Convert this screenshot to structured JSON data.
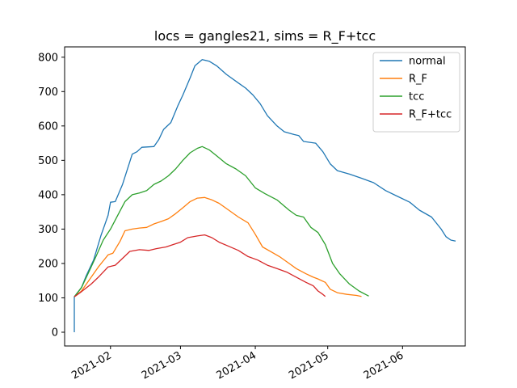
{
  "chart_data": {
    "type": "line",
    "title": "locs = gangles21, sims = R_F+tcc",
    "xlabel": "",
    "ylabel": "",
    "x_ticks": [
      "2021-01-31",
      "2021-03-01",
      "2021-04-01",
      "2021-05-01",
      "2021-06-01"
    ],
    "x_tick_labels": [
      "2021-02",
      "2021-03",
      "2021-04",
      "2021-05",
      "2021-06"
    ],
    "xlim": [
      "2021-01-12",
      "2021-06-27"
    ],
    "y_ticks": [
      0,
      100,
      200,
      300,
      400,
      500,
      600,
      700,
      800
    ],
    "y_tick_labels": [
      "0",
      "100",
      "200",
      "300",
      "400",
      "500",
      "600",
      "700",
      "800"
    ],
    "ylim": [
      -40,
      830
    ],
    "grid": false,
    "legend_position": "top-right",
    "series": [
      {
        "name": "normal",
        "color": "#1f77b4",
        "points": [
          [
            "2021-01-16",
            0
          ],
          [
            "2021-01-16",
            103
          ],
          [
            "2021-01-19",
            130
          ],
          [
            "2021-01-21",
            165
          ],
          [
            "2021-01-24",
            210
          ],
          [
            "2021-01-27",
            280
          ],
          [
            "2021-01-30",
            340
          ],
          [
            "2021-01-31",
            378
          ],
          [
            "2021-02-02",
            380
          ],
          [
            "2021-02-05",
            430
          ],
          [
            "2021-02-09",
            518
          ],
          [
            "2021-02-11",
            525
          ],
          [
            "2021-02-13",
            538
          ],
          [
            "2021-02-18",
            540
          ],
          [
            "2021-02-20",
            560
          ],
          [
            "2021-02-22",
            590
          ],
          [
            "2021-02-25",
            610
          ],
          [
            "2021-02-28",
            660
          ],
          [
            "2021-03-02",
            690
          ],
          [
            "2021-03-05",
            740
          ],
          [
            "2021-03-07",
            775
          ],
          [
            "2021-03-10",
            793
          ],
          [
            "2021-03-13",
            788
          ],
          [
            "2021-03-16",
            775
          ],
          [
            "2021-03-20",
            750
          ],
          [
            "2021-03-25",
            725
          ],
          [
            "2021-03-28",
            710
          ],
          [
            "2021-03-31",
            690
          ],
          [
            "2021-04-03",
            665
          ],
          [
            "2021-04-06",
            630
          ],
          [
            "2021-04-10",
            600
          ],
          [
            "2021-04-13",
            583
          ],
          [
            "2021-04-17",
            575
          ],
          [
            "2021-04-19",
            572
          ],
          [
            "2021-04-21",
            555
          ],
          [
            "2021-04-26",
            550
          ],
          [
            "2021-04-29",
            525
          ],
          [
            "2021-05-02",
            490
          ],
          [
            "2021-05-05",
            470
          ],
          [
            "2021-05-10",
            460
          ],
          [
            "2021-05-15",
            448
          ],
          [
            "2021-05-20",
            435
          ],
          [
            "2021-05-25",
            412
          ],
          [
            "2021-05-30",
            395
          ],
          [
            "2021-06-04",
            378
          ],
          [
            "2021-06-08",
            355
          ],
          [
            "2021-06-13",
            335
          ],
          [
            "2021-06-17",
            300
          ],
          [
            "2021-06-19",
            278
          ],
          [
            "2021-06-21",
            268
          ],
          [
            "2021-06-23",
            265
          ]
        ]
      },
      {
        "name": "R_F",
        "color": "#ff7f0e",
        "points": [
          [
            "2021-01-16",
            103
          ],
          [
            "2021-01-19",
            120
          ],
          [
            "2021-01-23",
            160
          ],
          [
            "2021-01-26",
            190
          ],
          [
            "2021-01-30",
            225
          ],
          [
            "2021-02-01",
            230
          ],
          [
            "2021-02-04",
            265
          ],
          [
            "2021-02-06",
            295
          ],
          [
            "2021-02-09",
            300
          ],
          [
            "2021-02-12",
            303
          ],
          [
            "2021-02-15",
            305
          ],
          [
            "2021-02-18",
            315
          ],
          [
            "2021-02-21",
            322
          ],
          [
            "2021-02-24",
            330
          ],
          [
            "2021-02-27",
            345
          ],
          [
            "2021-03-02",
            362
          ],
          [
            "2021-03-05",
            380
          ],
          [
            "2021-03-08",
            390
          ],
          [
            "2021-03-11",
            392
          ],
          [
            "2021-03-14",
            385
          ],
          [
            "2021-03-17",
            375
          ],
          [
            "2021-03-21",
            355
          ],
          [
            "2021-03-25",
            335
          ],
          [
            "2021-03-29",
            318
          ],
          [
            "2021-04-01",
            285
          ],
          [
            "2021-04-04",
            248
          ],
          [
            "2021-04-08",
            232
          ],
          [
            "2021-04-11",
            220
          ],
          [
            "2021-04-15",
            200
          ],
          [
            "2021-04-18",
            185
          ],
          [
            "2021-04-22",
            170
          ],
          [
            "2021-04-25",
            160
          ],
          [
            "2021-04-27",
            155
          ],
          [
            "2021-04-30",
            145
          ],
          [
            "2021-05-02",
            125
          ],
          [
            "2021-05-05",
            115
          ],
          [
            "2021-05-09",
            110
          ],
          [
            "2021-05-13",
            107
          ],
          [
            "2021-05-15",
            104
          ]
        ]
      },
      {
        "name": "tcc",
        "color": "#2ca02c",
        "points": [
          [
            "2021-01-16",
            103
          ],
          [
            "2021-01-19",
            130
          ],
          [
            "2021-01-22",
            175
          ],
          [
            "2021-01-25",
            220
          ],
          [
            "2021-01-28",
            268
          ],
          [
            "2021-01-31",
            300
          ],
          [
            "2021-02-03",
            340
          ],
          [
            "2021-02-06",
            380
          ],
          [
            "2021-02-09",
            400
          ],
          [
            "2021-02-12",
            405
          ],
          [
            "2021-02-15",
            412
          ],
          [
            "2021-02-18",
            430
          ],
          [
            "2021-02-21",
            440
          ],
          [
            "2021-02-24",
            455
          ],
          [
            "2021-02-27",
            475
          ],
          [
            "2021-03-02",
            500
          ],
          [
            "2021-03-05",
            522
          ],
          [
            "2021-03-08",
            535
          ],
          [
            "2021-03-10",
            540
          ],
          [
            "2021-03-13",
            530
          ],
          [
            "2021-03-16",
            513
          ],
          [
            "2021-03-20",
            490
          ],
          [
            "2021-03-24",
            475
          ],
          [
            "2021-03-28",
            455
          ],
          [
            "2021-04-01",
            420
          ],
          [
            "2021-04-05",
            403
          ],
          [
            "2021-04-10",
            385
          ],
          [
            "2021-04-15",
            355
          ],
          [
            "2021-04-18",
            340
          ],
          [
            "2021-04-21",
            335
          ],
          [
            "2021-04-24",
            305
          ],
          [
            "2021-04-27",
            290
          ],
          [
            "2021-04-30",
            255
          ],
          [
            "2021-05-03",
            200
          ],
          [
            "2021-05-06",
            170
          ],
          [
            "2021-05-10",
            140
          ],
          [
            "2021-05-14",
            120
          ],
          [
            "2021-05-18",
            105
          ]
        ]
      },
      {
        "name": "R_F+tcc",
        "color": "#d62728",
        "points": [
          [
            "2021-01-16",
            103
          ],
          [
            "2021-01-19",
            118
          ],
          [
            "2021-01-23",
            140
          ],
          [
            "2021-01-26",
            160
          ],
          [
            "2021-01-30",
            190
          ],
          [
            "2021-02-02",
            195
          ],
          [
            "2021-02-05",
            215
          ],
          [
            "2021-02-08",
            235
          ],
          [
            "2021-02-12",
            240
          ],
          [
            "2021-02-16",
            238
          ],
          [
            "2021-02-19",
            243
          ],
          [
            "2021-02-23",
            248
          ],
          [
            "2021-02-26",
            255
          ],
          [
            "2021-03-01",
            262
          ],
          [
            "2021-03-04",
            275
          ],
          [
            "2021-03-08",
            280
          ],
          [
            "2021-03-11",
            283
          ],
          [
            "2021-03-14",
            275
          ],
          [
            "2021-03-17",
            262
          ],
          [
            "2021-03-21",
            250
          ],
          [
            "2021-03-25",
            238
          ],
          [
            "2021-03-29",
            220
          ],
          [
            "2021-04-02",
            210
          ],
          [
            "2021-04-06",
            195
          ],
          [
            "2021-04-10",
            185
          ],
          [
            "2021-04-14",
            175
          ],
          [
            "2021-04-18",
            160
          ],
          [
            "2021-04-22",
            145
          ],
          [
            "2021-04-25",
            135
          ],
          [
            "2021-04-27",
            120
          ],
          [
            "2021-04-29",
            110
          ],
          [
            "2021-04-30",
            104
          ]
        ]
      }
    ]
  }
}
